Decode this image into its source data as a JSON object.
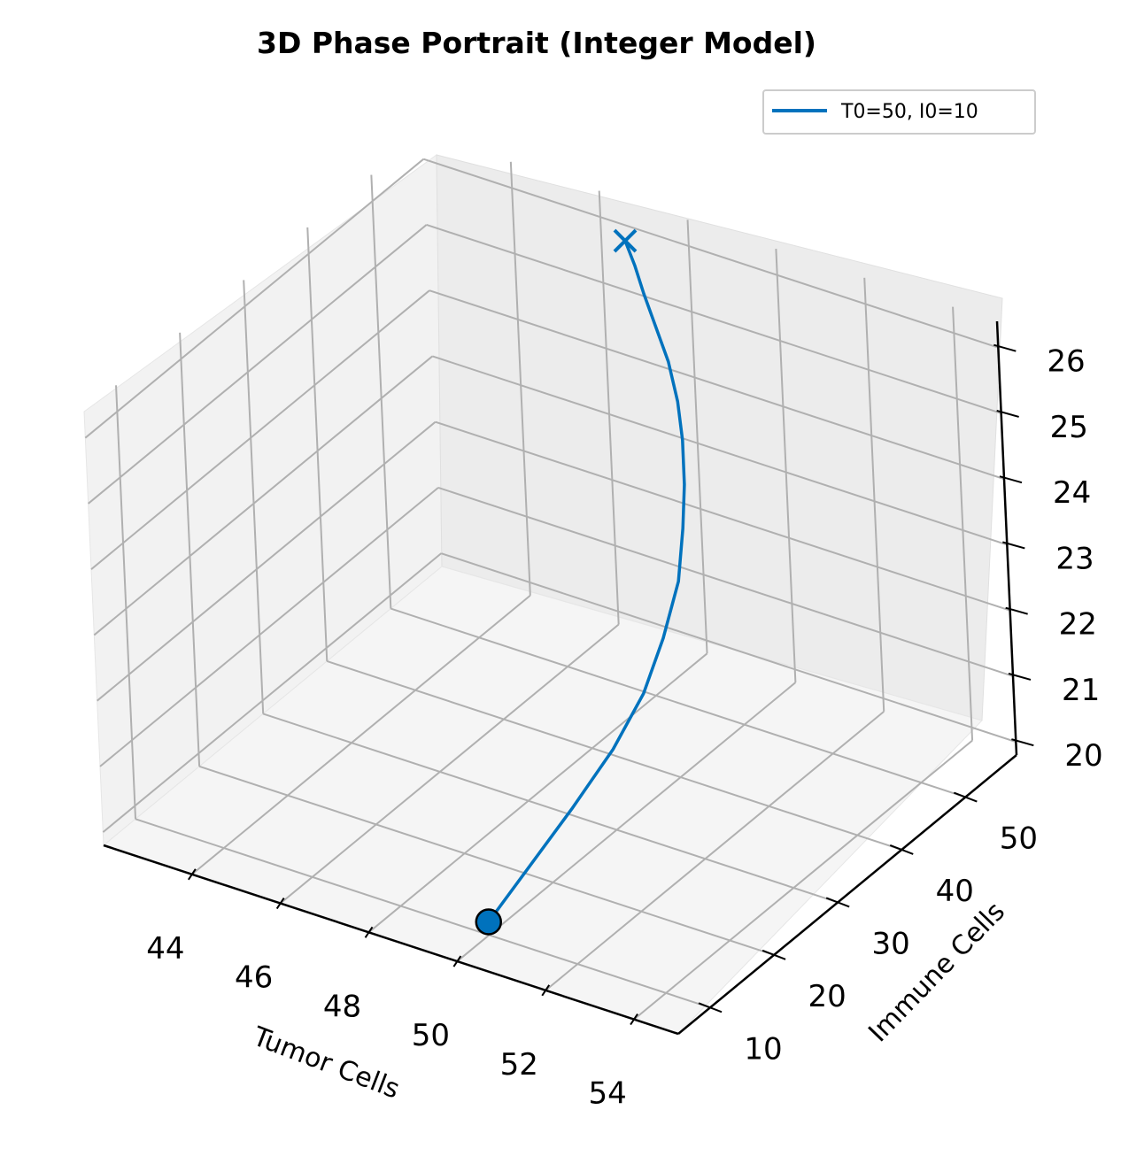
{
  "chart_data": {
    "type": "line",
    "projection": "3d",
    "title": "3D Phase Portrait (Integer Model)",
    "xlabel": "Tumor Cells",
    "ylabel": "Immune Cells",
    "zlabel": "",
    "xlim": [
      42,
      55
    ],
    "ylim": [
      5,
      58
    ],
    "zlim": [
      19.8,
      26.4
    ],
    "x_ticks": [
      "44",
      "46",
      "48",
      "50",
      "52",
      "54"
    ],
    "y_ticks": [
      "10",
      "20",
      "30",
      "40",
      "50"
    ],
    "z_ticks": [
      "20",
      "21",
      "22",
      "23",
      "24",
      "25",
      "26"
    ],
    "grid": true,
    "legend_position": "top-right",
    "series": [
      {
        "name": "T0=50, I0=10",
        "color": "#0072bd",
        "x": [
          50,
          50.1,
          50.2,
          50.3,
          50.3,
          50.2,
          50.0,
          49.7,
          49.4,
          49.1,
          48.8,
          48.4,
          48.0,
          47.6,
          47.3,
          47.0
        ],
        "y": [
          10,
          16,
          22,
          28,
          33,
          37,
          41,
          44,
          46.5,
          48.5,
          50,
          51.5,
          52.5,
          53.5,
          54.3,
          55
        ],
        "z": [
          20.0,
          20.4,
          20.8,
          21.25,
          21.7,
          22.2,
          22.7,
          23.2,
          23.6,
          24.05,
          24.45,
          24.85,
          25.2,
          25.55,
          25.85,
          26.1
        ],
        "start_marker": "circle",
        "end_marker": "x"
      }
    ]
  }
}
